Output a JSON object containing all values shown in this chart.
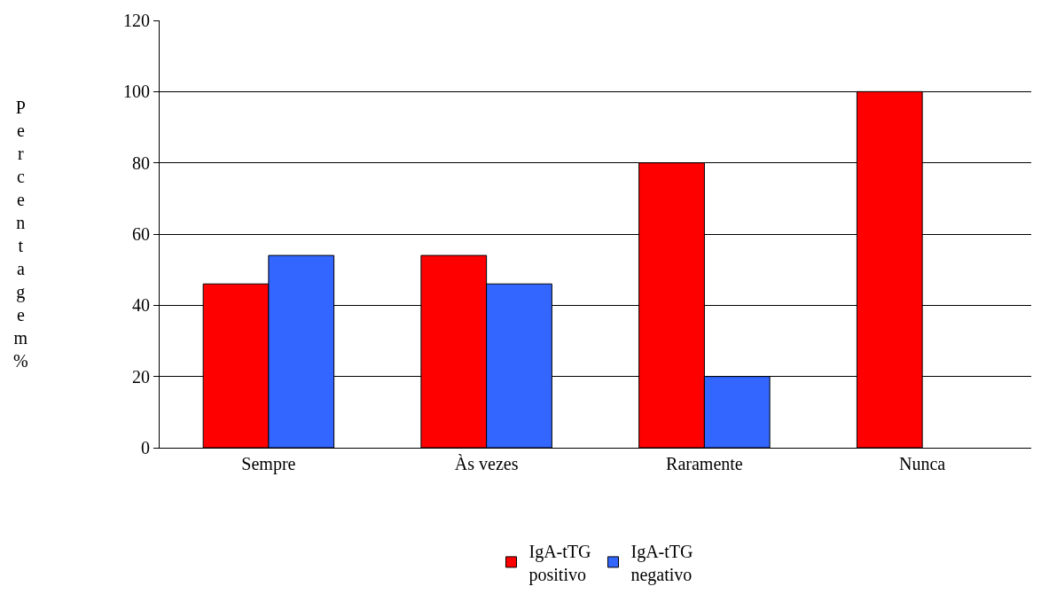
{
  "chart_data": {
    "type": "bar",
    "ylabel": "Percentagem %",
    "categories": [
      "Sempre",
      "Às vezes",
      "Raramente",
      "Nunca"
    ],
    "series": [
      {
        "name": "IgA-tTG positivo",
        "color": "#ff0000",
        "values": [
          46,
          54,
          80,
          100
        ]
      },
      {
        "name": "IgA-tTG negativo",
        "color": "#3366ff",
        "values": [
          54,
          46,
          20,
          null
        ]
      }
    ],
    "ylim": [
      0,
      120
    ],
    "yticks": [
      0,
      20,
      40,
      60,
      80,
      100,
      120
    ],
    "grid": "y",
    "legend": "bottom"
  }
}
